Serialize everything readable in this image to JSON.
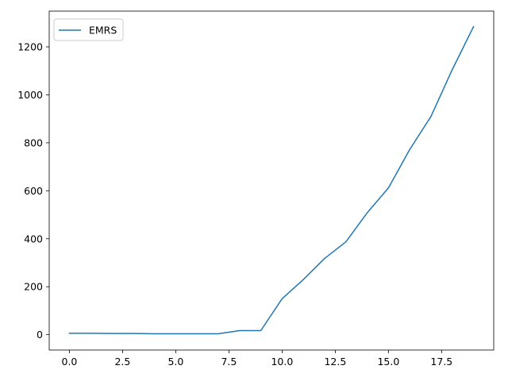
{
  "chart_data": {
    "type": "line",
    "title": "",
    "xlabel": "",
    "ylabel": "",
    "x": [
      0,
      1,
      2,
      3,
      4,
      5,
      6,
      7,
      8,
      9,
      10,
      11,
      12,
      13,
      14,
      15,
      16,
      17,
      18,
      19
    ],
    "series": [
      {
        "name": "EMRS",
        "color": "#1f77b4",
        "values": [
          6,
          6,
          5,
          5,
          4,
          4,
          4,
          4,
          17,
          17,
          150,
          230,
          318,
          387,
          508,
          612,
          772,
          910,
          1105,
          1284
        ]
      }
    ],
    "xlim": [
      -0.95,
      19.95
    ],
    "ylim": [
      -64,
      1349
    ],
    "x_ticks": [
      0.0,
      2.5,
      5.0,
      7.5,
      10.0,
      12.5,
      15.0,
      17.5
    ],
    "x_tick_labels": [
      "0.0",
      "2.5",
      "5.0",
      "7.5",
      "10.0",
      "12.5",
      "15.0",
      "17.5"
    ],
    "y_ticks": [
      0,
      200,
      400,
      600,
      800,
      1000,
      1200
    ],
    "y_tick_labels": [
      "0",
      "200",
      "400",
      "600",
      "800",
      "1000",
      "1200"
    ],
    "grid": false,
    "legend_position": "top-left"
  }
}
